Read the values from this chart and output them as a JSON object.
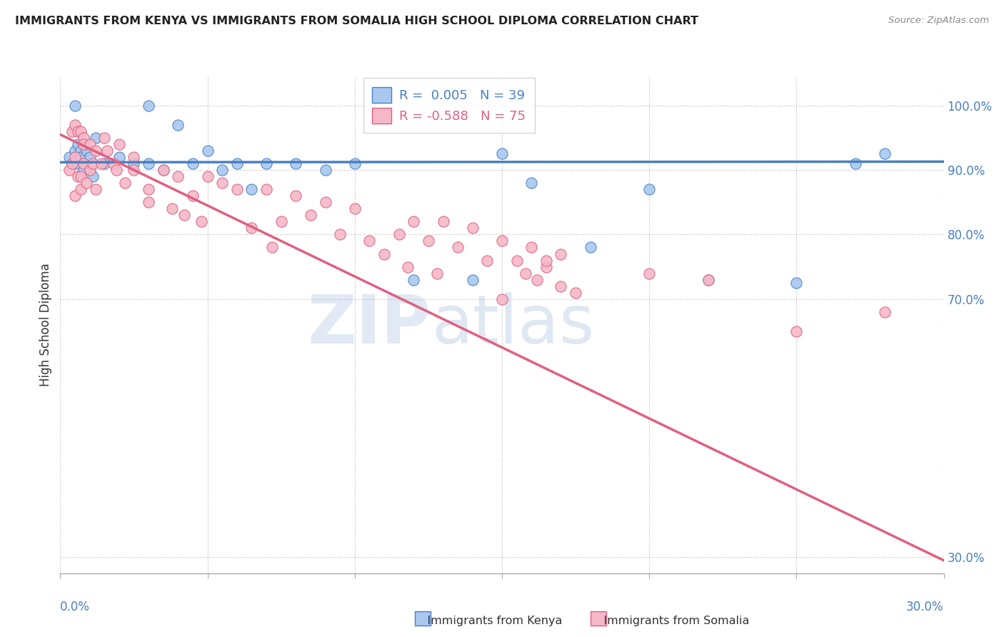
{
  "title": "IMMIGRANTS FROM KENYA VS IMMIGRANTS FROM SOMALIA HIGH SCHOOL DIPLOMA CORRELATION CHART",
  "source": "Source: ZipAtlas.com",
  "ylabel": "High School Diploma",
  "yticks": [
    0.3,
    0.7,
    0.8,
    0.9,
    1.0
  ],
  "ytick_labels": [
    "30.0%",
    "70.0%",
    "80.0%",
    "90.0%",
    "100.0%"
  ],
  "xlim": [
    0.0,
    0.3
  ],
  "ylim": [
    0.275,
    1.045
  ],
  "kenya_color": "#a8c8f0",
  "kenya_line_color": "#4a7fc1",
  "somalia_color": "#f4b8c8",
  "somalia_line_color": "#e06080",
  "watermark_zip": "ZIP",
  "watermark_atlas": "atlas",
  "watermark_color": "#d0dff0",
  "legend_label_kenya": "R =  0.005   N = 39",
  "legend_label_somalia": "R = -0.588   N = 75",
  "legend_color_kenya": "#4a7fc1",
  "legend_color_somalia": "#e06080",
  "kenya_line_y0": 0.912,
  "kenya_line_y1": 0.913,
  "somalia_line_y0": 0.955,
  "somalia_line_y1": 0.295,
  "kenya_scatter_x": [
    0.003,
    0.004,
    0.005,
    0.005,
    0.006,
    0.006,
    0.007,
    0.007,
    0.008,
    0.009,
    0.01,
    0.011,
    0.012,
    0.015,
    0.02,
    0.025,
    0.03,
    0.035,
    0.04,
    0.045,
    0.05,
    0.055,
    0.06,
    0.065,
    0.07,
    0.08,
    0.09,
    0.1,
    0.12,
    0.14,
    0.15,
    0.16,
    0.18,
    0.2,
    0.22,
    0.25,
    0.27,
    0.28,
    0.03
  ],
  "kenya_scatter_y": [
    0.92,
    0.91,
    1.0,
    0.93,
    0.94,
    0.91,
    0.93,
    0.92,
    0.9,
    0.93,
    0.92,
    0.89,
    0.95,
    0.91,
    0.92,
    0.91,
    0.91,
    0.9,
    0.97,
    0.91,
    0.93,
    0.9,
    0.91,
    0.87,
    0.91,
    0.91,
    0.9,
    0.91,
    0.73,
    0.73,
    0.925,
    0.88,
    0.78,
    0.87,
    0.73,
    0.725,
    0.91,
    0.925,
    1.0
  ],
  "somalia_scatter_x": [
    0.003,
    0.004,
    0.004,
    0.005,
    0.005,
    0.005,
    0.006,
    0.006,
    0.007,
    0.007,
    0.007,
    0.008,
    0.008,
    0.008,
    0.009,
    0.01,
    0.01,
    0.011,
    0.012,
    0.012,
    0.014,
    0.015,
    0.016,
    0.018,
    0.019,
    0.02,
    0.022,
    0.025,
    0.025,
    0.03,
    0.03,
    0.035,
    0.038,
    0.04,
    0.042,
    0.045,
    0.048,
    0.05,
    0.055,
    0.06,
    0.065,
    0.07,
    0.072,
    0.075,
    0.08,
    0.085,
    0.09,
    0.095,
    0.1,
    0.105,
    0.11,
    0.115,
    0.118,
    0.12,
    0.125,
    0.128,
    0.13,
    0.135,
    0.14,
    0.145,
    0.15,
    0.15,
    0.155,
    0.158,
    0.16,
    0.162,
    0.165,
    0.165,
    0.17,
    0.17,
    0.175,
    0.2,
    0.22,
    0.25,
    0.28
  ],
  "somalia_scatter_y": [
    0.9,
    0.96,
    0.91,
    0.97,
    0.92,
    0.86,
    0.96,
    0.89,
    0.96,
    0.89,
    0.87,
    0.95,
    0.94,
    0.91,
    0.88,
    0.94,
    0.9,
    0.91,
    0.93,
    0.87,
    0.91,
    0.95,
    0.93,
    0.91,
    0.9,
    0.94,
    0.88,
    0.92,
    0.9,
    0.87,
    0.85,
    0.9,
    0.84,
    0.89,
    0.83,
    0.86,
    0.82,
    0.89,
    0.88,
    0.87,
    0.81,
    0.87,
    0.78,
    0.82,
    0.86,
    0.83,
    0.85,
    0.8,
    0.84,
    0.79,
    0.77,
    0.8,
    0.75,
    0.82,
    0.79,
    0.74,
    0.82,
    0.78,
    0.81,
    0.76,
    0.79,
    0.7,
    0.76,
    0.74,
    0.78,
    0.73,
    0.75,
    0.76,
    0.72,
    0.77,
    0.71,
    0.74,
    0.73,
    0.65,
    0.68
  ]
}
